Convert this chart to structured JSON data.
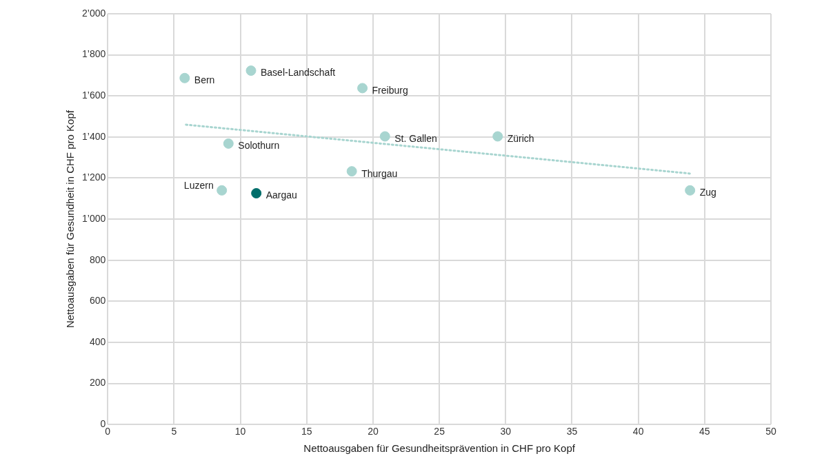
{
  "chart_data": {
    "type": "scatter",
    "xlabel": "Nettoausgaben für Gesundheitsprävention in CHF pro Kopf",
    "ylabel": "Nettoausgaben für Gesundheit in CHF pro Kopf",
    "xlim": [
      0,
      50
    ],
    "xticks": [
      0,
      5,
      10,
      15,
      20,
      25,
      30,
      35,
      40,
      45,
      50
    ],
    "ylim": [
      0,
      2000
    ],
    "yticks": [
      0,
      200,
      400,
      600,
      800,
      {
        "value": 1000,
        "label": "1’000"
      },
      {
        "value": 1200,
        "label": "1’200"
      },
      {
        "value": 1400,
        "label": "1’400"
      },
      {
        "value": 1600,
        "label": "1’600"
      },
      {
        "value": 1800,
        "label": "1’800"
      },
      {
        "value": 2000,
        "label": "2’000"
      }
    ],
    "grid": true,
    "legend": false,
    "marker": "circle",
    "series": [
      {
        "name": "Bern",
        "color": "#a8d5d0",
        "x": [
          5.8
        ],
        "values": [
          1687
        ]
      },
      {
        "name": "Basel-Landschaft",
        "color": "#a8d5d0",
        "x": [
          10.8
        ],
        "values": [
          1723
        ]
      },
      {
        "name": "Freiburg",
        "color": "#a8d5d0",
        "x": [
          19.2
        ],
        "values": [
          1638
        ]
      },
      {
        "name": "St. Gallen",
        "color": "#a8d5d0",
        "x": [
          20.9
        ],
        "values": [
          1403
        ]
      },
      {
        "name": "Zürich",
        "color": "#a8d5d0",
        "x": [
          29.4
        ],
        "values": [
          1403
        ]
      },
      {
        "name": "Solothurn",
        "color": "#a8d5d0",
        "x": [
          9.1
        ],
        "values": [
          1368
        ]
      },
      {
        "name": "Thurgau",
        "color": "#a8d5d0",
        "x": [
          18.4
        ],
        "values": [
          1233
        ]
      },
      {
        "name": "Luzern",
        "color": "#a8d5d0",
        "x": [
          8.6
        ],
        "values": [
          1140
        ]
      },
      {
        "name": "Aargau",
        "color": "#006e6b",
        "x": [
          11.2
        ],
        "values": [
          1126
        ]
      },
      {
        "name": "Zug",
        "color": "#a8d5d0",
        "x": [
          43.9
        ],
        "values": [
          1140
        ]
      },
      {
        "type": "line",
        "color": "#a8d5d0",
        "line_style": "dotted",
        "marker": "none",
        "x": [
          5.9,
          43.9
        ],
        "values": [
          1460,
          1222
        ]
      }
    ]
  }
}
